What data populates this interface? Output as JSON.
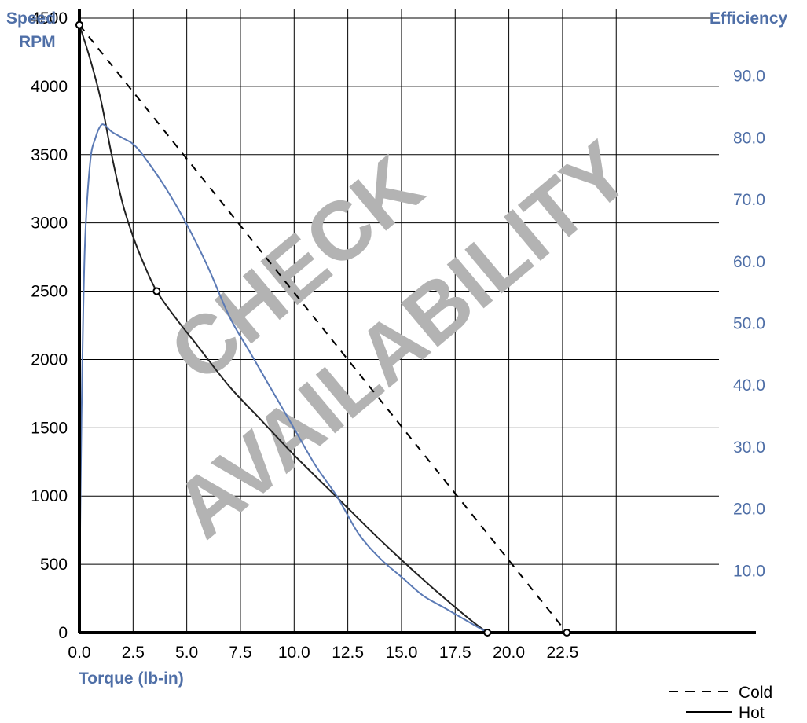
{
  "chart_data": {
    "type": "line",
    "xlabel": "Torque (lb-in)",
    "ylabel_left": [
      "Speed",
      "RPM"
    ],
    "ylabel_right": "Efficiency",
    "x_ticks": [
      "0.0",
      "2.5",
      "5.0",
      "7.5",
      "10.0",
      "12.5",
      "15.0",
      "17.5",
      "20.0",
      "22.5"
    ],
    "y_left_ticks": [
      "0",
      "500",
      "1000",
      "1500",
      "2000",
      "2500",
      "3000",
      "3500",
      "4000",
      "4500"
    ],
    "y_right_ticks": [
      "10.0",
      "20.0",
      "30.0",
      "40.0",
      "50.0",
      "60.0",
      "70.0",
      "80.0",
      "90.0"
    ],
    "xlim": [
      0,
      25
    ],
    "ylim_left": [
      0,
      4500
    ],
    "ylim_right": [
      0,
      90
    ],
    "grid": true,
    "legend_position": "bottom-right",
    "watermark": [
      "CHECK",
      "AVAILABILITY"
    ],
    "series": [
      {
        "name": "Cold",
        "axis": "left",
        "style": "dashed",
        "color": "#000000",
        "x": [
          0,
          22.7
        ],
        "y": [
          4450,
          0
        ],
        "markers": [
          [
            0,
            4450
          ],
          [
            22.7,
            0
          ]
        ]
      },
      {
        "name": "Hot",
        "axis": "left",
        "style": "solid",
        "color": "#222222",
        "x": [
          0,
          0.5,
          1.0,
          1.5,
          2.0,
          2.5,
          3.0,
          3.6,
          4.5,
          5.5,
          7.0,
          8.5,
          10.0,
          12.0,
          14.0,
          16.0,
          18.0,
          19.0
        ],
        "y": [
          4450,
          4200,
          3900,
          3500,
          3150,
          2900,
          2700,
          2500,
          2300,
          2100,
          1800,
          1550,
          1300,
          990,
          680,
          390,
          120,
          0
        ],
        "markers": [
          [
            0,
            4450
          ],
          [
            3.6,
            2500
          ],
          [
            19.0,
            0
          ]
        ]
      },
      {
        "axis": "right",
        "style": "solid",
        "color": "#5b7ab5",
        "x": [
          0,
          0.1,
          0.25,
          0.5,
          0.75,
          1.0,
          1.2,
          1.5,
          2.0,
          2.5,
          3.0,
          4.0,
          5.0,
          6.0,
          7.0,
          8.0,
          9.0,
          10.0,
          11.0,
          12.0,
          13.0,
          14.0,
          15.0,
          16.0,
          17.0,
          18.0,
          19.0
        ],
        "y": [
          5,
          35,
          62,
          76,
          80,
          82,
          82,
          81,
          80,
          79,
          77,
          72,
          66,
          59,
          51,
          45,
          39,
          33,
          27,
          22,
          16,
          12,
          9,
          6,
          4,
          2,
          0
        ]
      }
    ]
  }
}
